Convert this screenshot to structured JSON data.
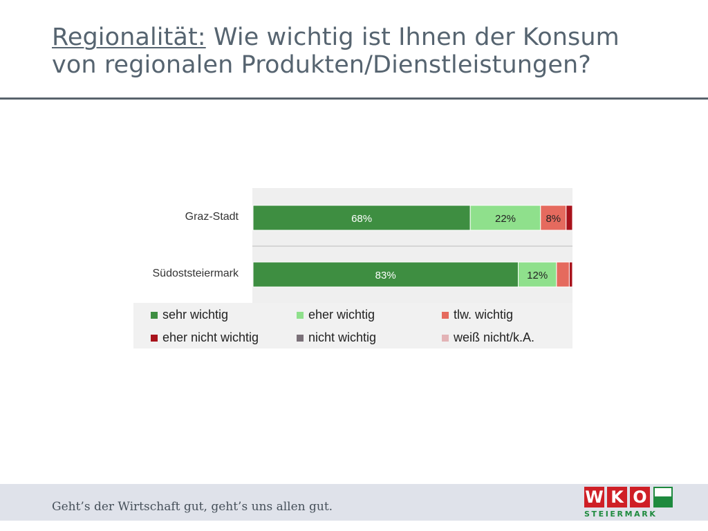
{
  "title": {
    "keyword": "Regionalität:",
    "line1_rest": " Wie wichtig ist Ihnen der Konsum",
    "line2": "von regionalen Produkten/Dienstleistungen?"
  },
  "chart_data": {
    "type": "bar",
    "orientation": "horizontal",
    "stacked": true,
    "percent_stacked": true,
    "categories": [
      "Graz-Stadt",
      "Südoststeiermark"
    ],
    "series": [
      {
        "name": "sehr wichtig",
        "color": "#3e8e41",
        "values": [
          68,
          83
        ],
        "labels": [
          "68%",
          "83%"
        ]
      },
      {
        "name": "eher wichtig",
        "color": "#8fe08c",
        "values": [
          22,
          12
        ],
        "labels": [
          "22%",
          "12%"
        ]
      },
      {
        "name": "tlw. wichtig",
        "color": "#e56a5e",
        "values": [
          8,
          4
        ],
        "labels": [
          "8%",
          ""
        ]
      },
      {
        "name": "eher nicht wichtig",
        "color": "#a8121b",
        "values": [
          2,
          1
        ],
        "labels": [
          "",
          ""
        ]
      },
      {
        "name": "nicht wichtig",
        "color": "#7a7078",
        "values": [
          0.5,
          0
        ],
        "labels": [
          "",
          ""
        ]
      },
      {
        "name": "weiß nicht/k.A.",
        "color": "#e3b3b6",
        "values": [
          0,
          0
        ],
        "labels": [
          "",
          ""
        ]
      }
    ],
    "xlim": [
      0,
      100
    ],
    "legend_position": "bottom"
  },
  "footer": {
    "slogan": "Geht’s der Wirtschaft gut, geht’s uns allen gut.",
    "logo_letters": [
      "W",
      "K",
      "O"
    ],
    "logo_sub": "STEIERMARK"
  },
  "colors": {
    "title": "#566470",
    "footer_bg": "#dfe2ea",
    "brand_red": "#cf1f26",
    "brand_green": "#1e8a3e"
  }
}
